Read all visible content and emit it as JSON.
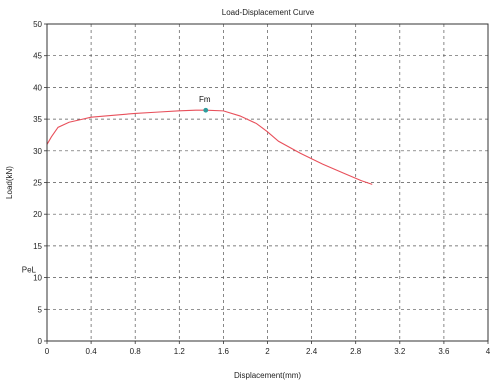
{
  "chart_data": {
    "type": "line",
    "title": "Load-Displacement Curve",
    "xlabel": "Displacement(mm)",
    "ylabel": "Load(kN)",
    "xlim": [
      0,
      4
    ],
    "ylim": [
      0,
      50
    ],
    "xticks": [
      "0",
      "0.4",
      "0.8",
      "1.2",
      "1.6",
      "2",
      "2.4",
      "2.8",
      "3.2",
      "3.6",
      "4"
    ],
    "yticks": [
      "0",
      "5",
      "10",
      "15",
      "20",
      "25",
      "30",
      "35",
      "40",
      "45",
      "50"
    ],
    "grid": true,
    "series": [
      {
        "color": "#e8505b",
        "x": [
          0,
          0.04,
          0.1,
          0.2,
          0.3,
          0.4,
          0.6,
          0.8,
          1.0,
          1.2,
          1.35,
          1.44,
          1.6,
          1.75,
          1.9,
          2.0,
          2.1,
          2.3,
          2.5,
          2.7,
          2.85,
          2.95
        ],
        "y": [
          31.0,
          32.2,
          33.7,
          34.5,
          34.9,
          35.3,
          35.6,
          35.9,
          36.1,
          36.3,
          36.4,
          36.4,
          36.3,
          35.5,
          34.3,
          33.0,
          31.5,
          29.6,
          27.9,
          26.4,
          25.3,
          24.7
        ]
      }
    ],
    "annotations": [
      {
        "label": "Fm",
        "x": 1.44,
        "y": 36.4,
        "marker_color": "#2e9e9e"
      },
      {
        "label": "PeL",
        "y": 11.3
      }
    ]
  }
}
